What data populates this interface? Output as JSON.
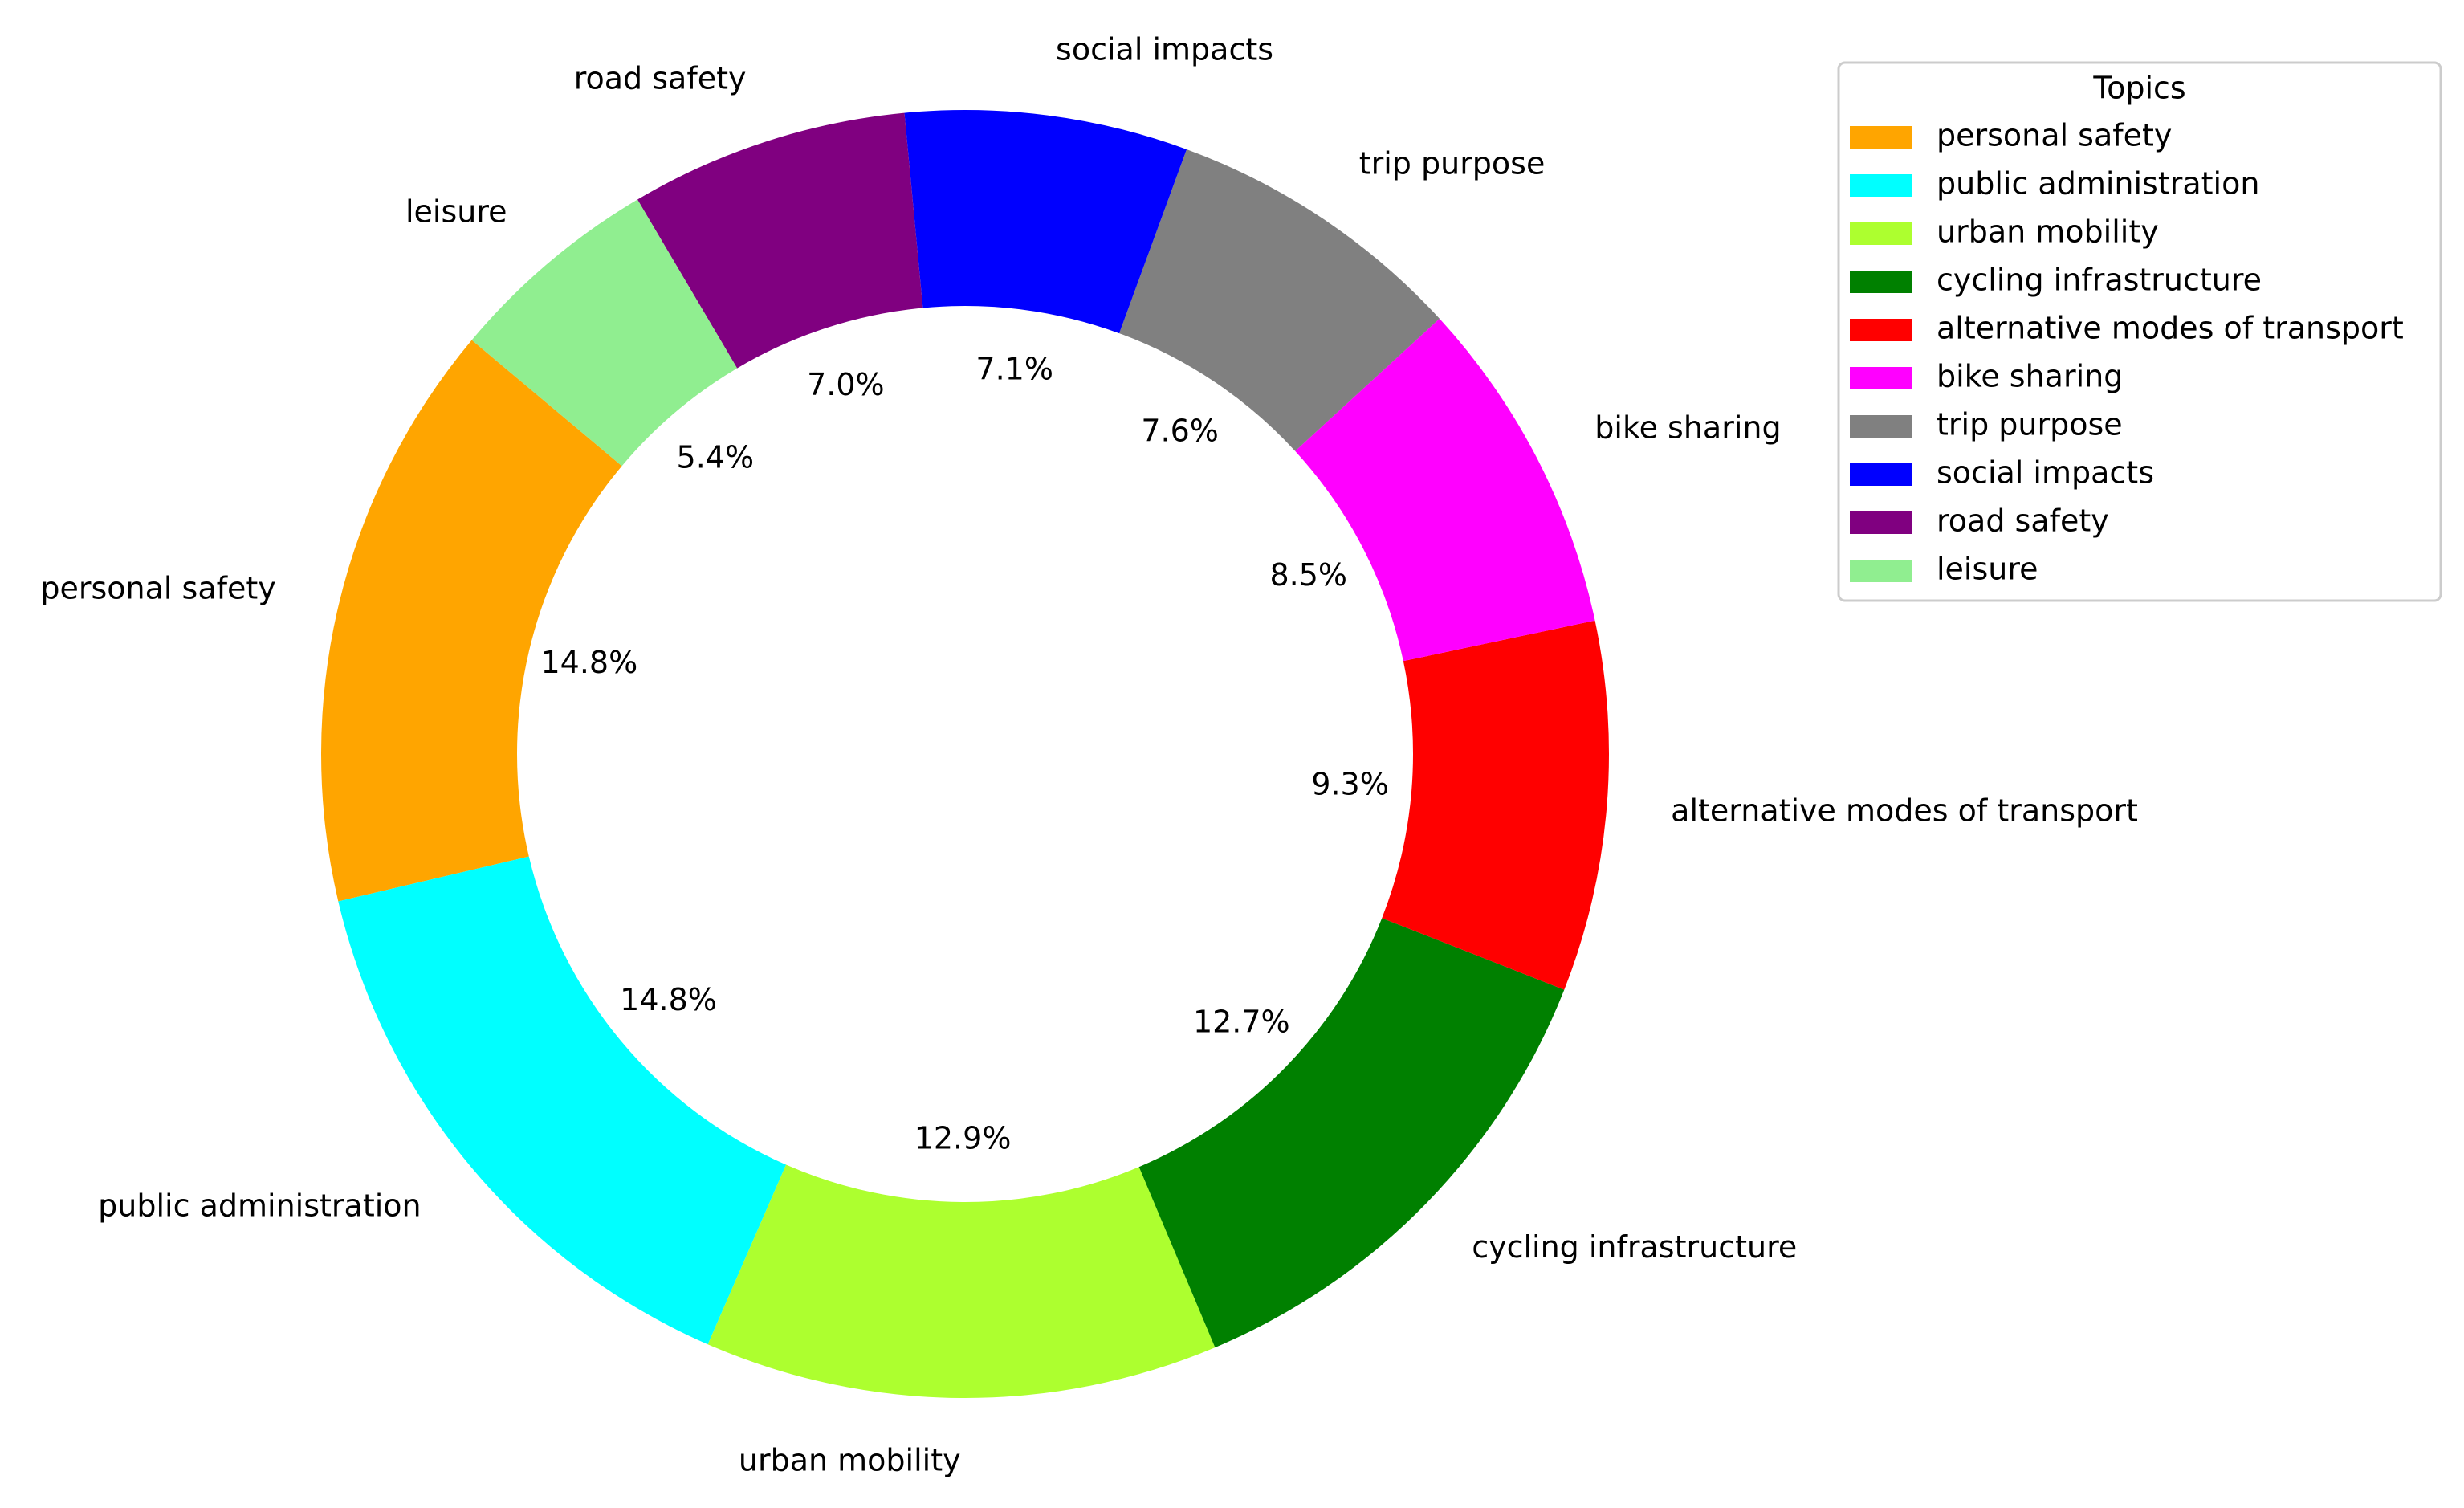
{
  "chart_data": {
    "type": "donut",
    "categories": [
      "personal safety",
      "public administration",
      "urban mobility",
      "cycling infrastructure",
      "alternative modes of transport",
      "bike sharing",
      "trip purpose",
      "social impacts",
      "road safety",
      "leisure"
    ],
    "values": [
      14.8,
      14.8,
      12.9,
      12.7,
      9.3,
      8.5,
      7.6,
      7.1,
      7.0,
      5.4
    ],
    "value_labels": [
      "14.8%",
      "14.8%",
      "12.9%",
      "12.7%",
      "9.3%",
      "8.5%",
      "7.6%",
      "7.1%",
      "7.0%",
      "5.4%"
    ],
    "colors": [
      "#ffa500",
      "#00ffff",
      "#adff2f",
      "#008000",
      "#ff0000",
      "#ff00ff",
      "#808080",
      "#0000ff",
      "#800080",
      "#90ee90"
    ],
    "legend_title": "Topics",
    "legend_position": "upper right"
  }
}
